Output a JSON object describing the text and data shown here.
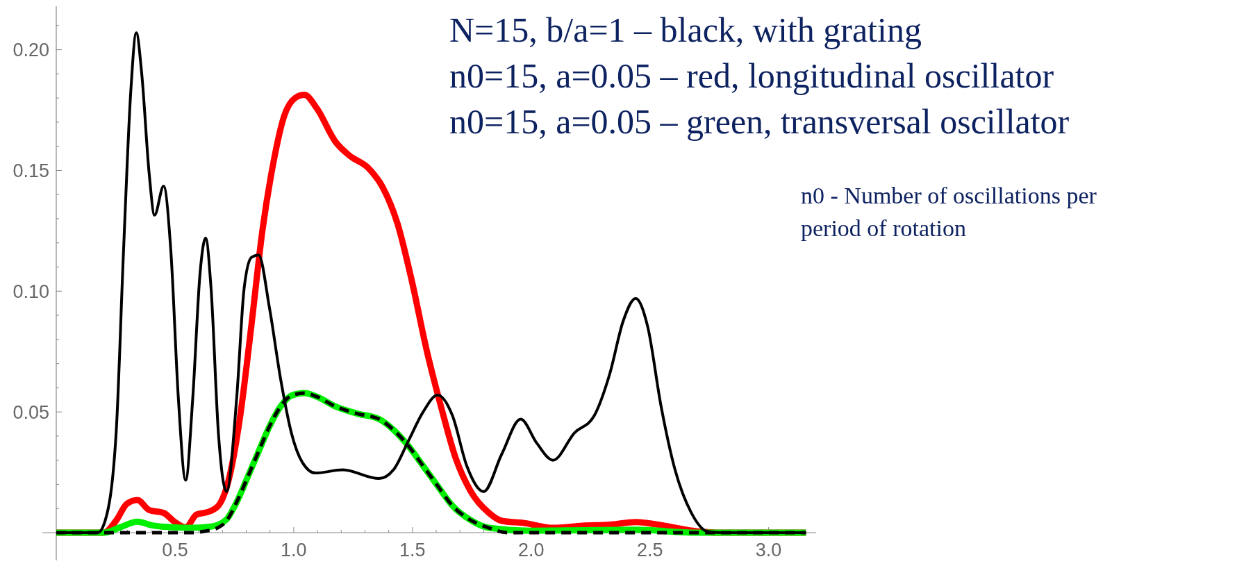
{
  "chart_data": {
    "type": "line",
    "annotations": [
      "N=15, b/a=1 – black, with grating",
      "n0=15, a=0.05 – red, longitudinal oscillator",
      "n0=15, a=0.05 – green, transversal oscillator",
      "n0 - Number of oscillations per period of rotation"
    ],
    "xlim": [
      0,
      3.2
    ],
    "ylim": [
      0,
      0.218
    ],
    "xticks": [
      {
        "value": 0.1,
        "label": null
      },
      {
        "value": 0.2,
        "label": null
      },
      {
        "value": 0.3,
        "label": null
      },
      {
        "value": 0.4,
        "label": null
      },
      0.5,
      {
        "value": 0.6,
        "label": null
      },
      {
        "value": 0.7,
        "label": null
      },
      {
        "value": 0.8,
        "label": null
      },
      {
        "value": 0.9,
        "label": null
      },
      {
        "value": 1,
        "label": "1.0"
      },
      {
        "value": 1.1,
        "label": null
      },
      {
        "value": 1.2,
        "label": null
      },
      {
        "value": 1.3,
        "label": null
      },
      {
        "value": 1.4,
        "label": null
      },
      1.5,
      {
        "value": 1.6,
        "label": null
      },
      {
        "value": 1.7,
        "label": null
      },
      {
        "value": 1.8,
        "label": null
      },
      {
        "value": 1.9,
        "label": null
      },
      {
        "value": 2,
        "label": "2.0"
      },
      {
        "value": 2.1,
        "label": null
      },
      {
        "value": 2.2,
        "label": null
      },
      {
        "value": 2.3,
        "label": null
      },
      {
        "value": 2.4,
        "label": null
      },
      2.5,
      {
        "value": 2.6,
        "label": null
      },
      {
        "value": 2.7,
        "label": null
      },
      {
        "value": 2.8,
        "label": null
      },
      {
        "value": 2.9,
        "label": null
      },
      {
        "value": 3,
        "label": "3.0"
      },
      {
        "value": 3.1,
        "label": null
      }
    ],
    "yticks": [
      {
        "value": 0.01,
        "label": null
      },
      {
        "value": 0.02,
        "label": null
      },
      {
        "value": 0.03,
        "label": null
      },
      {
        "value": 0.04,
        "label": null
      },
      0.05,
      {
        "value": 0.06,
        "label": null
      },
      {
        "value": 0.07,
        "label": null
      },
      {
        "value": 0.08,
        "label": null
      },
      {
        "value": 0.09,
        "label": null
      },
      {
        "value": 0.1,
        "label": "0.10"
      },
      {
        "value": 0.11,
        "label": null
      },
      {
        "value": 0.12,
        "label": null
      },
      {
        "value": 0.13,
        "label": null
      },
      {
        "value": 0.14,
        "label": null
      },
      0.15,
      {
        "value": 0.16,
        "label": null
      },
      {
        "value": 0.17,
        "label": null
      },
      {
        "value": 0.18,
        "label": null
      },
      {
        "value": 0.19,
        "label": null
      },
      {
        "value": 0.2,
        "label": "0.20"
      },
      {
        "value": 0.21,
        "label": null
      }
    ],
    "series": [
      {
        "color": "#000000",
        "line_style": "solid",
        "x": [
          0,
          0.175,
          0.206,
          0.252,
          0.283,
          0.314,
          0.337,
          0.36,
          0.391,
          0.414,
          0.452,
          0.483,
          0.514,
          0.545,
          0.575,
          0.606,
          0.629,
          0.652,
          0.683,
          0.717,
          0.76,
          0.791,
          0.822,
          0.852,
          0.898,
          0.945,
          0.991,
          1.037,
          1.091,
          1.206,
          1.36,
          1.42,
          1.483,
          1.545,
          1.606,
          1.668,
          1.729,
          1.8,
          1.876,
          1.956,
          2.024,
          2.092,
          2.183,
          2.263,
          2.331,
          2.388,
          2.44,
          2.49,
          2.547,
          2.606,
          2.674,
          2.742,
          2.8,
          3.157
        ],
        "values": [
          0,
          0,
          0.005,
          0.041,
          0.116,
          0.183,
          0.207,
          0.19,
          0.149,
          0.1315,
          0.1435,
          0.116,
          0.056,
          0.0217,
          0.056,
          0.108,
          0.122,
          0.101,
          0.041,
          0.017,
          0.056,
          0.101,
          0.114,
          0.115,
          0.093,
          0.0635,
          0.041,
          0.029,
          0.0247,
          0.026,
          0.0224,
          0.026,
          0.038,
          0.05,
          0.057,
          0.0486,
          0.0276,
          0.017,
          0.0325,
          0.047,
          0.037,
          0.03,
          0.0414,
          0.048,
          0.0658,
          0.0878,
          0.097,
          0.0856,
          0.0524,
          0.026,
          0.0083,
          0.0005,
          0,
          0
        ]
      },
      {
        "color": "#ff0000",
        "line_style": "solid",
        "x": [
          0,
          0.2,
          0.252,
          0.298,
          0.342,
          0.391,
          0.452,
          0.498,
          0.545,
          0.591,
          0.637,
          0.683,
          0.729,
          0.775,
          0.822,
          0.868,
          0.914,
          0.96,
          1.006,
          1.045,
          1.098,
          1.175,
          1.237,
          1.314,
          1.375,
          1.437,
          1.498,
          1.56,
          1.622,
          1.683,
          1.745,
          1.822,
          1.876,
          1.97,
          2.092,
          2.217,
          2.331,
          2.44,
          2.56,
          2.674,
          2.788,
          3.157
        ],
        "values": [
          0,
          0,
          0.005,
          0.012,
          0.0135,
          0.0094,
          0.0082,
          0.0045,
          0.0022,
          0.0075,
          0.0085,
          0.0112,
          0.023,
          0.0486,
          0.086,
          0.125,
          0.153,
          0.1726,
          0.18,
          0.1813,
          0.1756,
          0.162,
          0.156,
          0.151,
          0.143,
          0.128,
          0.104,
          0.0755,
          0.0516,
          0.0306,
          0.0172,
          0.0082,
          0.0049,
          0.004,
          0.002,
          0.0029,
          0.0033,
          0.0044,
          0.0029,
          0.0009,
          0,
          0
        ]
      },
      {
        "color": "#00ee00",
        "line_style": "solid",
        "x": [
          0,
          0.2,
          0.268,
          0.342,
          0.406,
          0.498,
          0.575,
          0.652,
          0.714,
          0.76,
          0.806,
          0.852,
          0.898,
          0.945,
          0.991,
          1.045,
          1.098,
          1.175,
          1.268,
          1.36,
          1.42,
          1.483,
          1.545,
          1.606,
          1.668,
          1.745,
          1.822,
          2.0,
          2.44,
          2.7,
          3.157
        ],
        "values": [
          0,
          0,
          0.0022,
          0.0045,
          0.003,
          0.0022,
          0.002,
          0.0025,
          0.0052,
          0.0127,
          0.023,
          0.0336,
          0.044,
          0.0523,
          0.0568,
          0.0578,
          0.0563,
          0.0523,
          0.0493,
          0.047,
          0.0426,
          0.0359,
          0.0276,
          0.0194,
          0.0112,
          0.0052,
          0.002,
          0.0008,
          0.0012,
          0,
          0
        ]
      },
      {
        "color": "#000000",
        "line_style": "dashed",
        "x": [
          0,
          0.58,
          0.62,
          0.68,
          0.714,
          0.76,
          0.806,
          0.852,
          0.898,
          0.945,
          0.991,
          1.045,
          1.098,
          1.175,
          1.268,
          1.36,
          1.42,
          1.483,
          1.545,
          1.606,
          1.668,
          1.745,
          1.822,
          1.9,
          3.157
        ],
        "values": [
          0,
          0,
          0.0005,
          0.002,
          0.0045,
          0.0127,
          0.023,
          0.0336,
          0.044,
          0.0523,
          0.0568,
          0.0578,
          0.0563,
          0.0523,
          0.0493,
          0.047,
          0.0426,
          0.0359,
          0.0276,
          0.0194,
          0.0112,
          0.0052,
          0.002,
          0,
          0
        ]
      }
    ]
  }
}
